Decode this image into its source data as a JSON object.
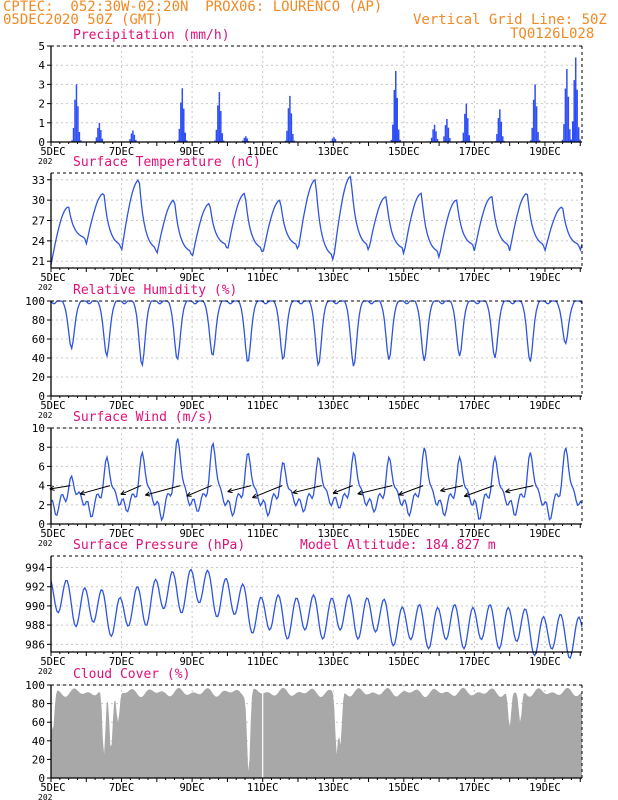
{
  "header": {
    "line1": "CPTEC:  052:30W-02:20N  PROX06: LOURENCO (AP)",
    "line2_left": "05DEC2020 50Z (GMT)",
    "line2_right": "Vertical Grid Line: 50Z",
    "line3_right": "TQ0126L028"
  },
  "colors": {
    "header": "#f08a24",
    "title": "#e0107a",
    "line": "#2f55e0",
    "bar": "#2f4ff5",
    "cloud": "#a8a8a8",
    "axis": "#000000"
  },
  "x_axis": {
    "tick_labels": [
      "5DEC",
      "7DEC",
      "9DEC",
      "11DEC",
      "13DEC",
      "15DEC",
      "17DEC",
      "19DEC"
    ],
    "tick_day_offsets": [
      0,
      2,
      4,
      6,
      8,
      10,
      12,
      14
    ],
    "days_span": 15.05,
    "stub": "202"
  },
  "chart_data": [
    {
      "type": "bar",
      "title": "Precipitation (mm/h)",
      "ylim": [
        0,
        5
      ],
      "yticks": [
        0,
        1,
        2,
        3,
        4,
        5
      ],
      "y_tick_labels": [
        "0",
        "1",
        "2",
        "3",
        "4",
        "5"
      ],
      "bursts": [
        {
          "day": 0.7,
          "peak": 3.0
        },
        {
          "day": 1.35,
          "peak": 1.0
        },
        {
          "day": 2.3,
          "peak": 0.6
        },
        {
          "day": 3.7,
          "peak": 2.8
        },
        {
          "day": 4.75,
          "peak": 2.6
        },
        {
          "day": 5.5,
          "peak": 0.3
        },
        {
          "day": 6.75,
          "peak": 2.4
        },
        {
          "day": 8.0,
          "peak": 0.25
        },
        {
          "day": 9.75,
          "peak": 3.7
        },
        {
          "day": 10.85,
          "peak": 0.9
        },
        {
          "day": 11.2,
          "peak": 1.2
        },
        {
          "day": 11.75,
          "peak": 2.0
        },
        {
          "day": 12.7,
          "peak": 1.7
        },
        {
          "day": 13.7,
          "peak": 3.0
        },
        {
          "day": 14.6,
          "peak": 3.8
        },
        {
          "day": 14.85,
          "peak": 4.4
        }
      ]
    },
    {
      "type": "line",
      "title": "Surface Temperature (nC)",
      "ylim": [
        20,
        34
      ],
      "yticks": [
        21,
        24,
        27,
        30,
        33
      ],
      "y_tick_labels": [
        "21",
        "24",
        "27",
        "30",
        "33"
      ],
      "daily_max": [
        29.0,
        31.0,
        33.0,
        30.0,
        29.5,
        31.0,
        30.0,
        33.0,
        33.5,
        30.5,
        31.0,
        30.0,
        30.5,
        31.0,
        29.0
      ],
      "daily_min": [
        20.5,
        23.5,
        22.5,
        22.0,
        21.5,
        22.5,
        22.0,
        22.5,
        21.0,
        22.5,
        22.0,
        21.5,
        22.5,
        22.5,
        22.5
      ]
    },
    {
      "type": "line",
      "title": "Relative Humidity (%)",
      "ylim": [
        0,
        100
      ],
      "yticks": [
        0,
        20,
        40,
        60,
        80,
        100
      ],
      "y_tick_labels": [
        "0",
        "20",
        "40",
        "60",
        "80",
        "100"
      ],
      "daily_min": [
        50,
        42,
        32,
        38,
        42,
        35,
        38,
        32,
        31,
        38,
        37,
        42,
        40,
        36,
        55
      ]
    },
    {
      "type": "line",
      "title": "Surface Wind (m/s)",
      "ylim": [
        0,
        10
      ],
      "yticks": [
        0,
        2,
        4,
        6,
        8,
        10
      ],
      "y_tick_labels": [
        "0",
        "2",
        "4",
        "6",
        "8",
        "10"
      ],
      "daily_min": [
        1.0,
        0.8,
        1.5,
        0.5,
        1.5,
        1.0,
        1.0,
        1.5,
        2.0,
        1.5,
        1.0,
        1.0,
        0.5,
        1.0,
        0.5
      ],
      "daily_max": [
        4.5,
        6.5,
        7.0,
        8.5,
        8.0,
        7.0,
        6.0,
        6.5,
        7.0,
        6.5,
        7.5,
        6.5,
        6.5,
        7.0,
        7.5
      ],
      "vectors": "easterly trade wind arrows plotted along the 4 m/s line"
    },
    {
      "type": "line",
      "title": "Surface Pressure (hPa)",
      "annotation": "Model Altitude: 184.827 m",
      "ylim": [
        985.2,
        995.2
      ],
      "yticks": [
        986,
        988,
        990,
        992,
        994
      ],
      "y_tick_labels": [
        "986",
        "988",
        "990",
        "992",
        "994"
      ],
      "base": [
        991,
        990,
        989,
        991,
        992,
        991,
        989,
        989,
        989,
        989,
        988,
        988,
        988,
        988,
        987
      ],
      "amplitude": 2.2
    },
    {
      "type": "area",
      "title": "Cloud Cover (%)",
      "ylim": [
        0,
        100
      ],
      "yticks": [
        0,
        20,
        40,
        60,
        80,
        100
      ],
      "y_tick_labels": [
        "0",
        "20",
        "40",
        "60",
        "80",
        "100"
      ],
      "typical": 92,
      "dips": [
        {
          "day": 0.05,
          "low": 50
        },
        {
          "day": 1.5,
          "low": 25
        },
        {
          "day": 1.7,
          "low": 30
        },
        {
          "day": 1.9,
          "low": 60
        },
        {
          "day": 5.6,
          "low": 5
        },
        {
          "day": 8.1,
          "low": 25
        },
        {
          "day": 8.2,
          "low": 35
        },
        {
          "day": 13.0,
          "low": 55
        },
        {
          "day": 13.3,
          "low": 60
        }
      ]
    }
  ]
}
